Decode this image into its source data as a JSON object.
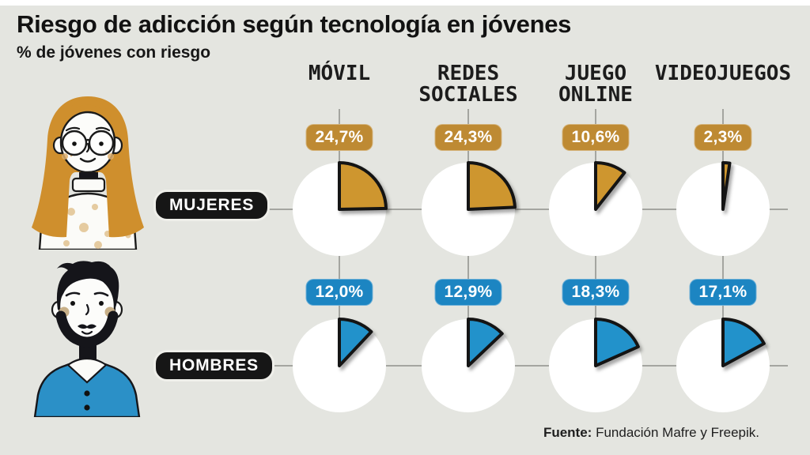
{
  "title": "Riesgo de adicción según tecnología en jóvenes",
  "subtitle": "% de jóvenes con riesgo",
  "columns": [
    {
      "lines": [
        "MÓVIL",
        ""
      ]
    },
    {
      "lines": [
        "REDES",
        "SOCIALES"
      ]
    },
    {
      "lines": [
        "JUEGO",
        "ONLINE"
      ]
    },
    {
      "lines": [
        "VIDEOJUEGOS",
        ""
      ]
    }
  ],
  "source": {
    "label": "Fuente:",
    "text": " Fundación Mafre y Freepik."
  },
  "colors": {
    "background": "#E4E5E0",
    "grid_line": "#A4A5A0",
    "pie_base": "#FFFFFF",
    "pill_background": "#161616",
    "mujeres_orange": "#CE962F",
    "hombres_blue": "#2292CB"
  },
  "chart_data": {
    "type": "pie",
    "layout": "2 rows x 4 columns of single-value pie charts, slices start at 12 o'clock clockwise",
    "title": "Riesgo de adicción según tecnología en jóvenes",
    "subtitle_unit": "% de jóvenes con riesgo",
    "categories": [
      "MÓVIL",
      "REDES SOCIALES",
      "JUEGO ONLINE",
      "VIDEOJUEGOS"
    ],
    "series": [
      {
        "name": "MUJERES",
        "color": "#CE962F",
        "badge_color": "#BE8A33",
        "values": [
          24.7,
          24.3,
          10.6,
          2.3
        ],
        "display_labels": [
          "24,7%",
          "24,3%",
          "10,6%",
          "2,3%"
        ]
      },
      {
        "name": "HOMBRES",
        "color": "#2292CB",
        "badge_color": "#1C85C2",
        "values": [
          12.0,
          12.9,
          18.3,
          17.1
        ],
        "display_labels": [
          "12,0%",
          "12,9%",
          "18,3%",
          "17,1%"
        ]
      }
    ],
    "source": "Fuente: Fundación Mafre y Freepik."
  }
}
